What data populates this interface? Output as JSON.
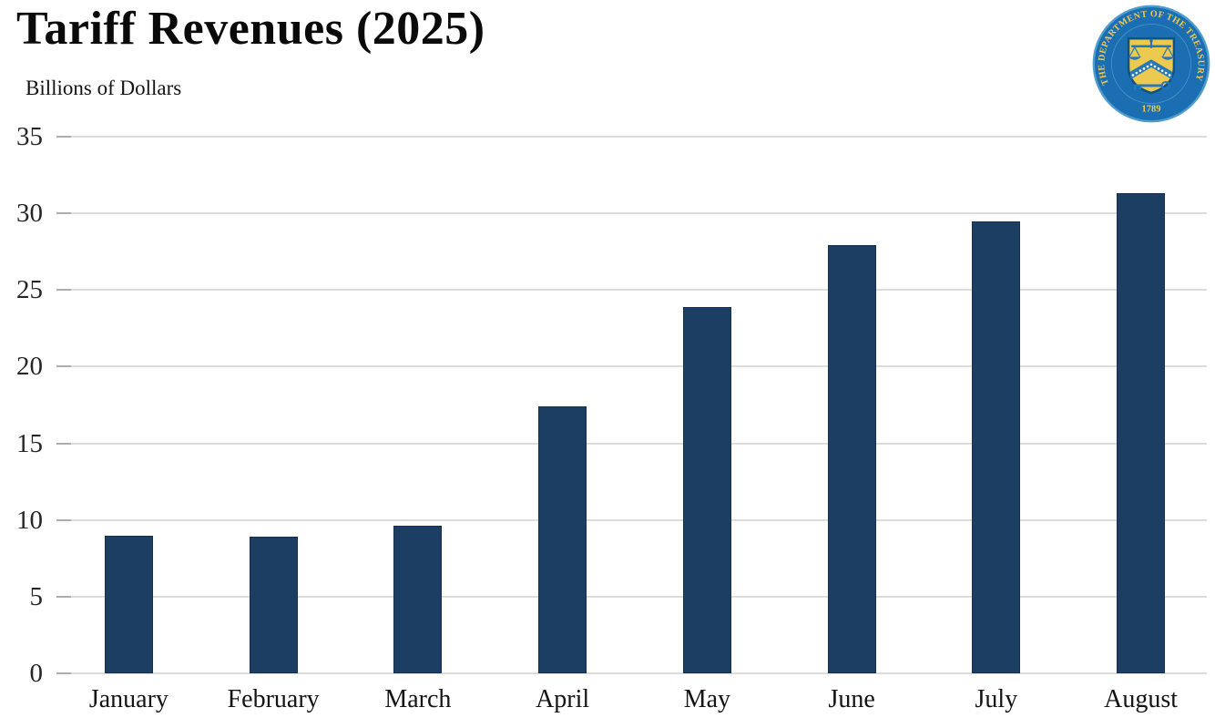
{
  "header": {
    "title": "Tariff Revenues (2025)",
    "subtitle": "Billions of Dollars"
  },
  "seal": {
    "ring_text": "THE DEPARTMENT OF THE TREASURY",
    "year": "1789",
    "colors": {
      "ring_blue": "#1a6eb1",
      "rim_blue": "#4f9bcd",
      "gold": "#f0ca4f",
      "emblem_blue": "#2478b8",
      "shield_outline": "#11527f"
    }
  },
  "chart_data": {
    "type": "bar",
    "title": "Tariff Revenues (2025)",
    "subtitle": "Billions of Dollars",
    "categories": [
      "January",
      "February",
      "March",
      "April",
      "May",
      "June",
      "July",
      "August"
    ],
    "values": [
      9.0,
      8.9,
      9.6,
      17.4,
      23.9,
      27.9,
      29.5,
      31.3
    ],
    "xlabel": "",
    "ylabel": "Billions of Dollars",
    "ylim": [
      0,
      35
    ],
    "yticks": [
      0,
      5,
      10,
      15,
      20,
      25,
      30,
      35
    ],
    "grid": "horizontal",
    "legend": "none",
    "bar_color": "#1d3e63"
  }
}
